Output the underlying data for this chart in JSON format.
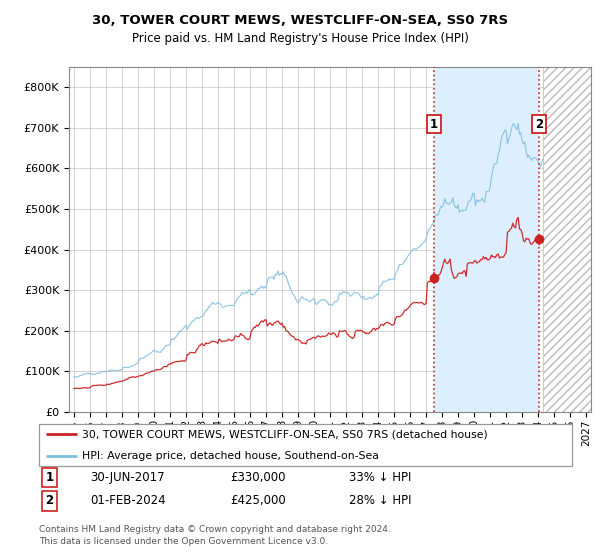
{
  "title_line1": "30, TOWER COURT MEWS, WESTCLIFF-ON-SEA, SS0 7RS",
  "title_line2": "Price paid vs. HM Land Registry's House Price Index (HPI)",
  "ylim": [
    0,
    850000
  ],
  "xlim_start": 1994.7,
  "xlim_end": 2027.3,
  "yticks": [
    0,
    100000,
    200000,
    300000,
    400000,
    500000,
    600000,
    700000,
    800000
  ],
  "ytick_labels": [
    "£0",
    "£100K",
    "£200K",
    "£300K",
    "£400K",
    "£500K",
    "£600K",
    "£700K",
    "£800K"
  ],
  "xticks": [
    1995,
    1996,
    1997,
    1998,
    1999,
    2000,
    2001,
    2002,
    2003,
    2004,
    2005,
    2006,
    2007,
    2008,
    2009,
    2010,
    2011,
    2012,
    2013,
    2014,
    2015,
    2016,
    2017,
    2018,
    2019,
    2020,
    2021,
    2022,
    2023,
    2024,
    2025,
    2026,
    2027
  ],
  "hpi_color": "#7fbfdf",
  "price_color": "#cc2222",
  "vline_color": "#cc2222",
  "grid_color": "#cccccc",
  "shade_color": "#ddeeff",
  "legend_label_red": "30, TOWER COURT MEWS, WESTCLIFF-ON-SEA, SS0 7RS (detached house)",
  "legend_label_blue": "HPI: Average price, detached house, Southend-on-Sea",
  "transaction1_date": "30-JUN-2017",
  "transaction1_price": "£330,000",
  "transaction1_info": "33% ↓ HPI",
  "transaction1_x": 2017.5,
  "transaction1_y": 330000,
  "transaction2_date": "01-FEB-2024",
  "transaction2_price": "£425,000",
  "transaction2_info": "28% ↓ HPI",
  "transaction2_x": 2024.08,
  "transaction2_y": 425000,
  "hatched_region_start": 2024.33,
  "hatched_region_end": 2027.3,
  "footer_text": "Contains HM Land Registry data © Crown copyright and database right 2024.\nThis data is licensed under the Open Government Licence v3.0."
}
